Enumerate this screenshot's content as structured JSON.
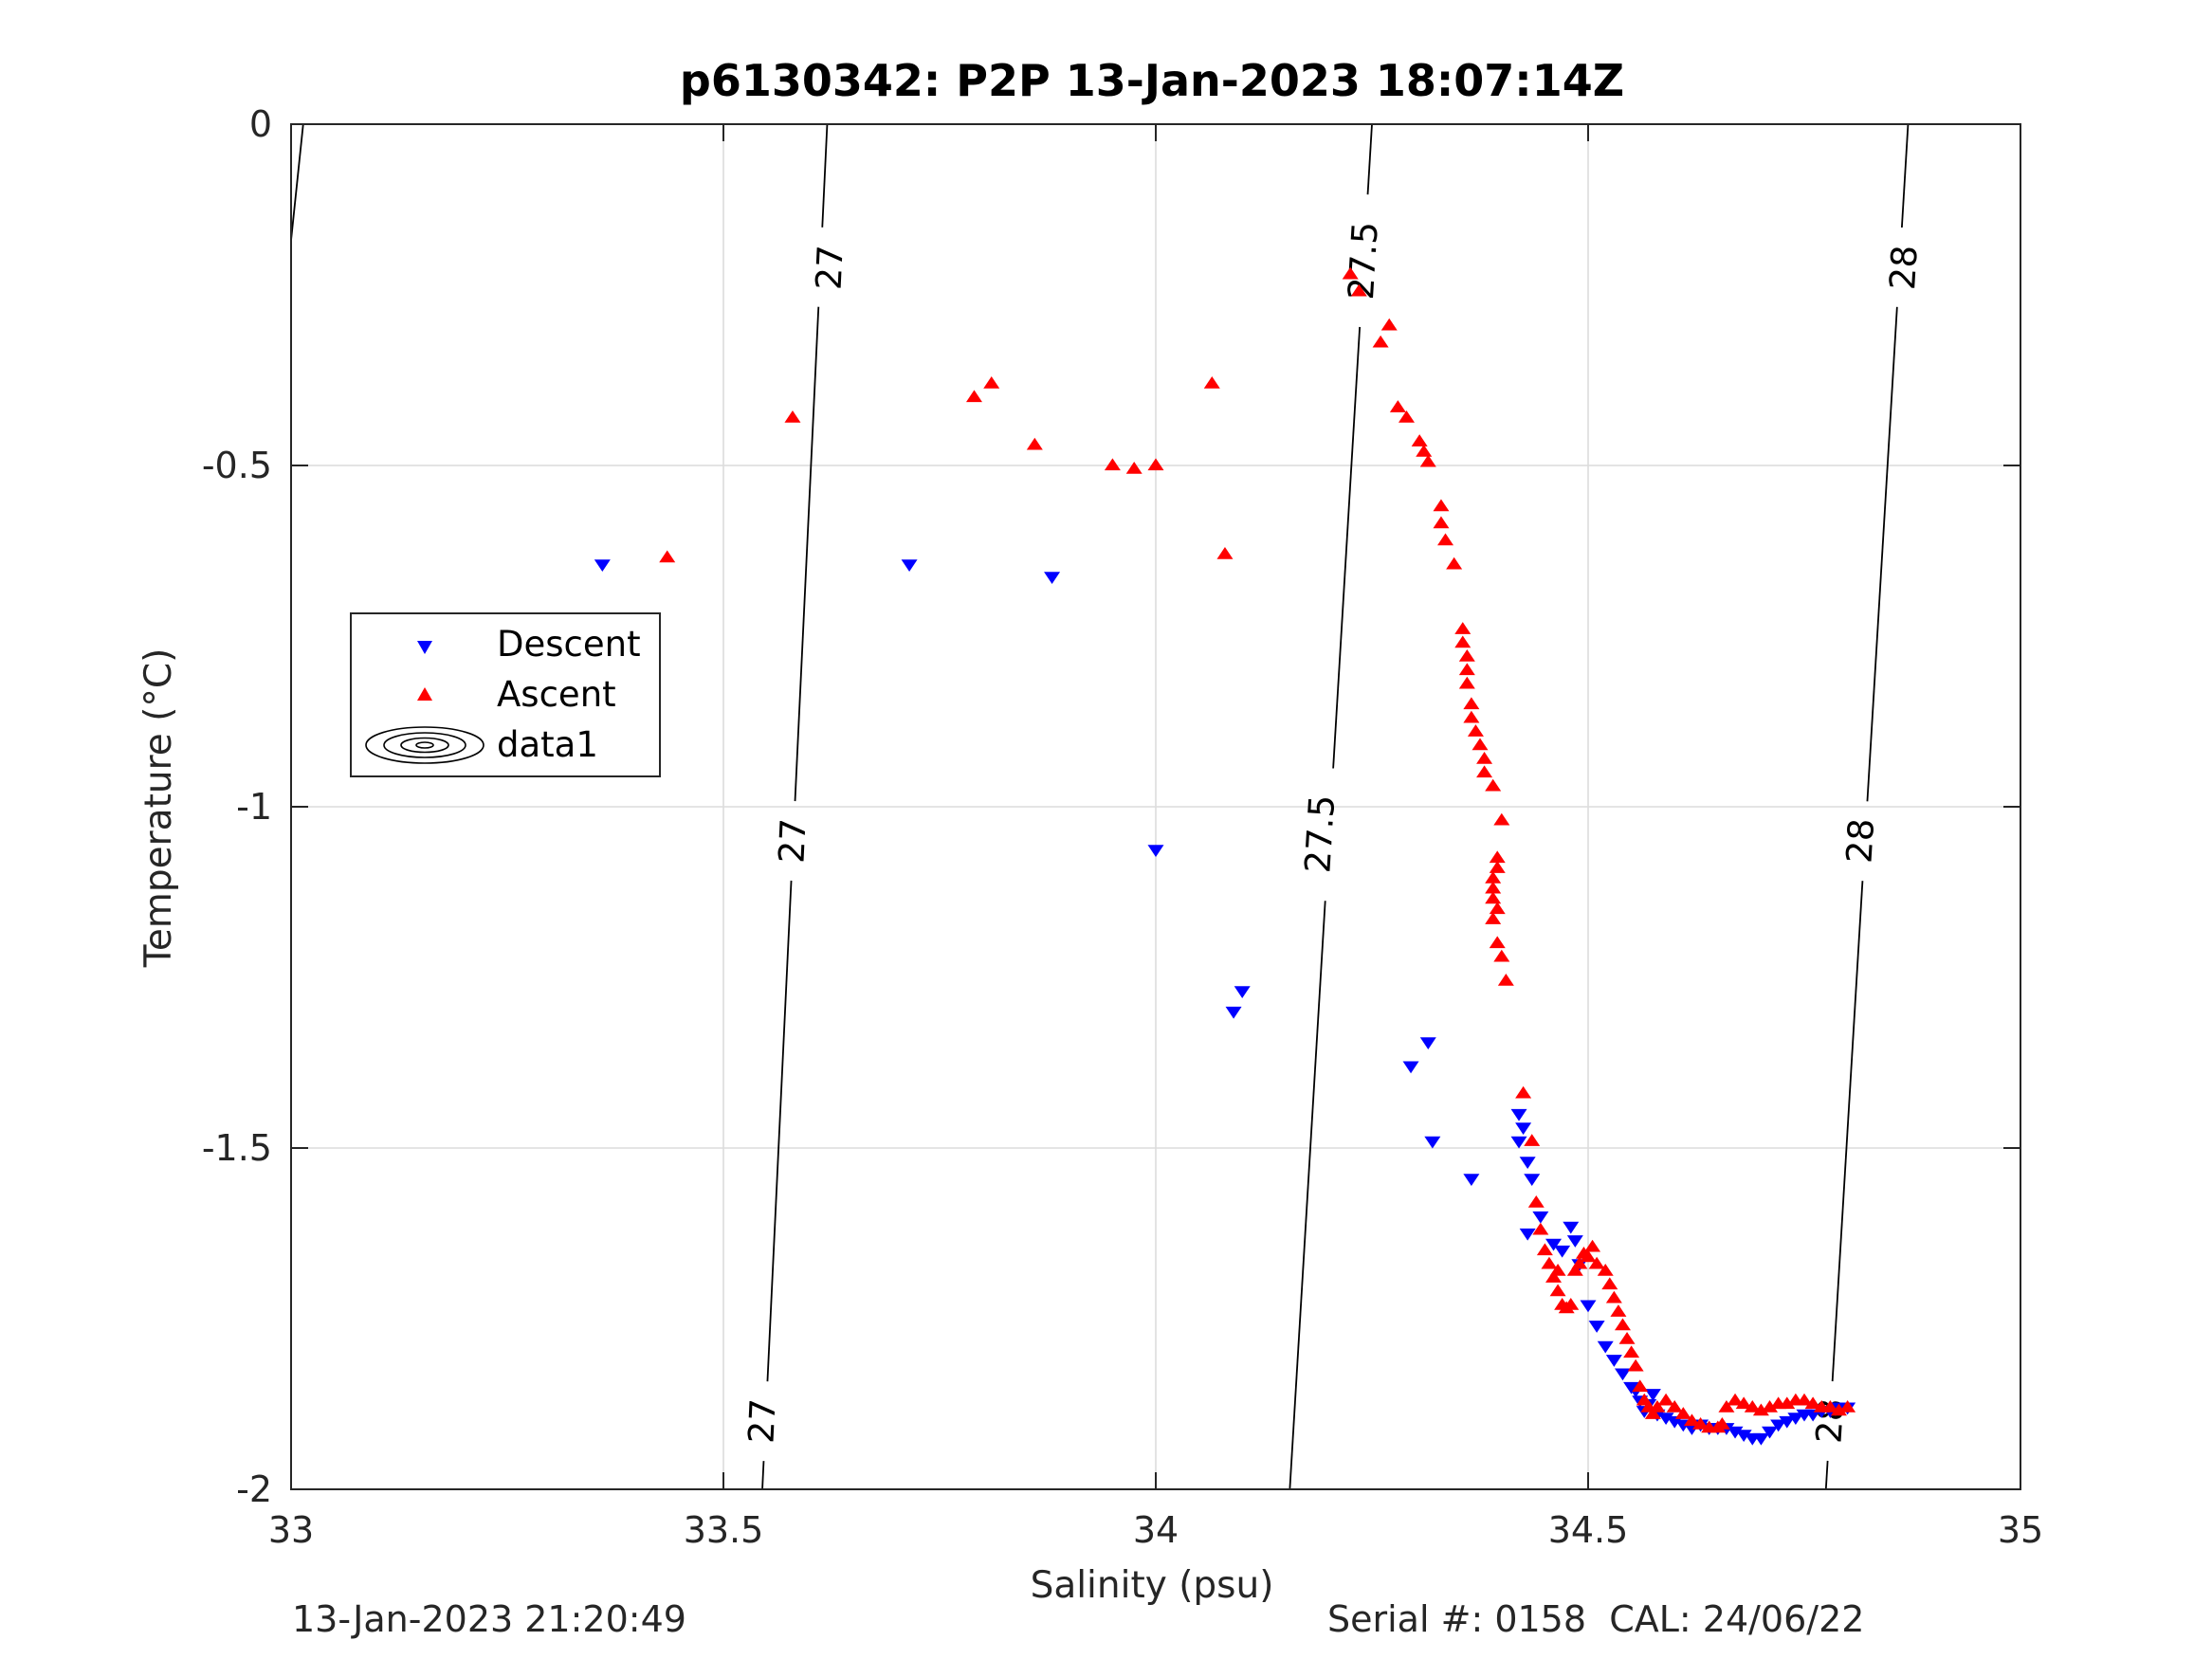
{
  "chart_data": {
    "type": "scatter",
    "title": "p6130342: P2P 13-Jan-2023 18:07:14Z",
    "xlabel": "Salinity (psu)",
    "ylabel": "Temperature (°C)",
    "xlim": [
      33,
      35
    ],
    "ylim": [
      -2,
      0
    ],
    "xticks": [
      33,
      33.5,
      34,
      34.5,
      35
    ],
    "xtick_labels": [
      "33",
      "33.5",
      "34",
      "34.5",
      "35"
    ],
    "yticks": [
      0,
      -0.5,
      -1,
      -1.5,
      -2
    ],
    "ytick_labels": [
      "0",
      "-0.5",
      "-1",
      "-1.5",
      "-2"
    ],
    "grid": true,
    "legend": {
      "placement": "left",
      "entries": [
        {
          "name": "Descent",
          "marker": "triangle-down",
          "color": "#0000ff"
        },
        {
          "name": "Ascent",
          "marker": "triangle-up",
          "color": "#ff0000"
        },
        {
          "name": "data1",
          "marker": "contour",
          "color": "#000000"
        }
      ]
    },
    "series": [
      {
        "name": "Descent",
        "marker": "triangle-down",
        "color": "#0000ff",
        "points": [
          [
            33.36,
            -0.645
          ],
          [
            33.715,
            -0.645
          ],
          [
            33.88,
            -0.663
          ],
          [
            34.0,
            -1.063
          ],
          [
            34.09,
            -1.3
          ],
          [
            34.1,
            -1.27
          ],
          [
            34.295,
            -1.38
          ],
          [
            34.315,
            -1.345
          ],
          [
            34.32,
            -1.49
          ],
          [
            34.365,
            -1.545
          ],
          [
            34.42,
            -1.45
          ],
          [
            34.425,
            -1.47
          ],
          [
            34.42,
            -1.49
          ],
          [
            34.43,
            -1.52
          ],
          [
            34.435,
            -1.545
          ],
          [
            34.43,
            -1.625
          ],
          [
            34.445,
            -1.6
          ],
          [
            34.46,
            -1.64
          ],
          [
            34.47,
            -1.65
          ],
          [
            34.48,
            -1.615
          ],
          [
            34.485,
            -1.635
          ],
          [
            34.49,
            -1.67
          ],
          [
            34.5,
            -1.73
          ],
          [
            34.51,
            -1.76
          ],
          [
            34.52,
            -1.79
          ],
          [
            34.53,
            -1.81
          ],
          [
            34.54,
            -1.83
          ],
          [
            34.55,
            -1.85
          ],
          [
            34.56,
            -1.87
          ],
          [
            34.57,
            -1.875
          ],
          [
            34.58,
            -1.89
          ],
          [
            34.59,
            -1.895
          ],
          [
            34.6,
            -1.9
          ],
          [
            34.61,
            -1.905
          ],
          [
            34.62,
            -1.91
          ],
          [
            34.63,
            -1.905
          ],
          [
            34.64,
            -1.91
          ],
          [
            34.65,
            -1.91
          ],
          [
            34.66,
            -1.91
          ],
          [
            34.67,
            -1.915
          ],
          [
            34.68,
            -1.92
          ],
          [
            34.69,
            -1.925
          ],
          [
            34.7,
            -1.925
          ],
          [
            34.71,
            -1.915
          ],
          [
            34.72,
            -1.905
          ],
          [
            34.73,
            -1.9
          ],
          [
            34.74,
            -1.895
          ],
          [
            34.75,
            -1.89
          ],
          [
            34.76,
            -1.89
          ],
          [
            34.77,
            -1.885
          ],
          [
            34.78,
            -1.885
          ],
          [
            34.79,
            -1.88
          ],
          [
            34.8,
            -1.88
          ],
          [
            34.555,
            -1.855
          ],
          [
            34.565,
            -1.885
          ],
          [
            34.575,
            -1.86
          ]
        ]
      },
      {
        "name": "Ascent",
        "marker": "triangle-up",
        "color": "#ff0000",
        "points": [
          [
            33.435,
            -0.635
          ],
          [
            33.58,
            -0.43
          ],
          [
            33.79,
            -0.4
          ],
          [
            33.81,
            -0.38
          ],
          [
            33.86,
            -0.47
          ],
          [
            33.95,
            -0.5
          ],
          [
            33.975,
            -0.505
          ],
          [
            34.0,
            -0.5
          ],
          [
            34.065,
            -0.38
          ],
          [
            34.08,
            -0.63
          ],
          [
            34.225,
            -0.22
          ],
          [
            34.235,
            -0.245
          ],
          [
            34.26,
            -0.32
          ],
          [
            34.27,
            -0.295
          ],
          [
            34.28,
            -0.415
          ],
          [
            34.29,
            -0.43
          ],
          [
            34.305,
            -0.465
          ],
          [
            34.31,
            -0.48
          ],
          [
            34.315,
            -0.495
          ],
          [
            34.33,
            -0.56
          ],
          [
            34.33,
            -0.585
          ],
          [
            34.335,
            -0.61
          ],
          [
            34.345,
            -0.645
          ],
          [
            34.355,
            -0.74
          ],
          [
            34.355,
            -0.76
          ],
          [
            34.36,
            -0.78
          ],
          [
            34.36,
            -0.8
          ],
          [
            34.36,
            -0.82
          ],
          [
            34.365,
            -0.85
          ],
          [
            34.365,
            -0.87
          ],
          [
            34.37,
            -0.89
          ],
          [
            34.375,
            -0.91
          ],
          [
            34.38,
            -0.93
          ],
          [
            34.38,
            -0.95
          ],
          [
            34.39,
            -0.97
          ],
          [
            34.4,
            -1.02
          ],
          [
            34.395,
            -1.075
          ],
          [
            34.395,
            -1.09
          ],
          [
            34.39,
            -1.105
          ],
          [
            34.39,
            -1.12
          ],
          [
            34.39,
            -1.135
          ],
          [
            34.395,
            -1.15
          ],
          [
            34.39,
            -1.165
          ],
          [
            34.395,
            -1.2
          ],
          [
            34.4,
            -1.22
          ],
          [
            34.405,
            -1.255
          ],
          [
            34.425,
            -1.42
          ],
          [
            34.435,
            -1.49
          ],
          [
            34.44,
            -1.58
          ],
          [
            34.445,
            -1.62
          ],
          [
            34.45,
            -1.65
          ],
          [
            34.455,
            -1.67
          ],
          [
            34.46,
            -1.69
          ],
          [
            34.465,
            -1.71
          ],
          [
            34.47,
            -1.73
          ],
          [
            34.475,
            -1.735
          ],
          [
            34.48,
            -1.73
          ],
          [
            34.485,
            -1.68
          ],
          [
            34.49,
            -1.67
          ],
          [
            34.5,
            -1.66
          ],
          [
            34.51,
            -1.67
          ],
          [
            34.52,
            -1.68
          ],
          [
            34.525,
            -1.7
          ],
          [
            34.53,
            -1.72
          ],
          [
            34.535,
            -1.74
          ],
          [
            34.54,
            -1.76
          ],
          [
            34.545,
            -1.78
          ],
          [
            34.55,
            -1.8
          ],
          [
            34.555,
            -1.82
          ],
          [
            34.56,
            -1.85
          ],
          [
            34.565,
            -1.87
          ],
          [
            34.57,
            -1.88
          ],
          [
            34.575,
            -1.89
          ],
          [
            34.58,
            -1.88
          ],
          [
            34.59,
            -1.87
          ],
          [
            34.6,
            -1.88
          ],
          [
            34.61,
            -1.89
          ],
          [
            34.62,
            -1.9
          ],
          [
            34.63,
            -1.905
          ],
          [
            34.64,
            -1.91
          ],
          [
            34.65,
            -1.91
          ],
          [
            34.655,
            -1.905
          ],
          [
            34.66,
            -1.88
          ],
          [
            34.67,
            -1.87
          ],
          [
            34.68,
            -1.875
          ],
          [
            34.69,
            -1.88
          ],
          [
            34.7,
            -1.885
          ],
          [
            34.71,
            -1.88
          ],
          [
            34.72,
            -1.875
          ],
          [
            34.73,
            -1.875
          ],
          [
            34.74,
            -1.87
          ],
          [
            34.75,
            -1.87
          ],
          [
            34.76,
            -1.875
          ],
          [
            34.77,
            -1.88
          ],
          [
            34.78,
            -1.88
          ],
          [
            34.79,
            -1.885
          ],
          [
            34.8,
            -1.88
          ],
          [
            34.505,
            -1.645
          ],
          [
            34.495,
            -1.655
          ],
          [
            34.465,
            -1.68
          ]
        ]
      }
    ],
    "isopycnals": [
      {
        "label": "27",
        "line": [
          [
            33.62,
            0
          ],
          [
            33.545,
            -2
          ]
        ],
        "label_positions": [
          [
            33.623,
            -0.21
          ],
          [
            33.58,
            -1.05
          ],
          [
            33.545,
            -1.9
          ]
        ]
      },
      {
        "label": "27.5",
        "line": [
          [
            34.25,
            0
          ],
          [
            34.155,
            -2
          ]
        ],
        "label_positions": [
          [
            34.24,
            -0.2
          ],
          [
            34.19,
            -1.04
          ]
        ]
      },
      {
        "label": "28",
        "line": [
          [
            34.87,
            0
          ],
          [
            34.775,
            -2
          ]
        ],
        "label_positions": [
          [
            34.865,
            -0.21
          ],
          [
            34.815,
            -1.05
          ],
          [
            34.78,
            -1.9
          ]
        ]
      },
      {
        "label": "",
        "line": [
          [
            33.014,
            0
          ],
          [
            33.0,
            -0.17
          ]
        ],
        "label_positions": []
      }
    ]
  },
  "footer": {
    "left": "13-Jan-2023 21:20:49",
    "right": "Serial #: 0158  CAL: 24/06/22"
  }
}
